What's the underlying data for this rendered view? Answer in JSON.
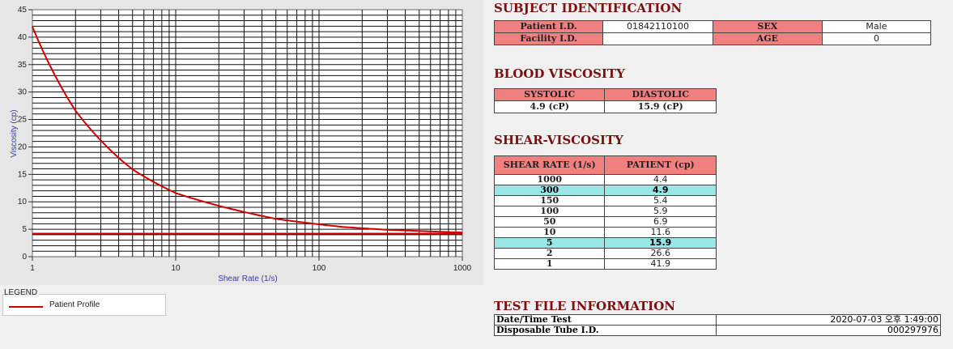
{
  "chart_data": {
    "type": "line",
    "title": "",
    "xlabel": "Shear Rate (1/s)",
    "ylabel": "Viscosity (cp)",
    "x_scale": "log",
    "xlim": [
      1,
      1000
    ],
    "ylim": [
      0,
      45
    ],
    "x_ticks": [
      "1",
      "10",
      "100",
      "1000"
    ],
    "y_ticks": [
      "0",
      "5",
      "10",
      "15",
      "20",
      "25",
      "30",
      "35",
      "40",
      "45"
    ],
    "grid": true,
    "legend_placement": "below-left",
    "series": [
      {
        "name": "Patient Profile",
        "color": "#d00000",
        "x": [
          1,
          2,
          5,
          10,
          50,
          100,
          150,
          300,
          1000
        ],
        "y": [
          41.9,
          26.6,
          15.9,
          11.6,
          6.9,
          5.9,
          5.4,
          4.9,
          4.4
        ]
      }
    ],
    "reference_line": {
      "y": 4.2,
      "color": "#d00000"
    }
  },
  "legend": {
    "title": "LEGEND",
    "items": [
      "Patient Profile"
    ]
  },
  "subject": {
    "title": "SUBJECT IDENTIFICATION",
    "patient_id_label": "Patient I.D.",
    "patient_id": "01842110100",
    "sex_label": "SEX",
    "sex": "Male",
    "facility_id_label": "Facility I.D.",
    "facility_id": "",
    "age_label": "AGE",
    "age": "0"
  },
  "blood": {
    "title": "BLOOD VISCOSITY",
    "systolic_label": "SYSTOLIC",
    "diastolic_label": "DIASTOLIC",
    "systolic": "4.9 (cP)",
    "diastolic": "15.9 (cP)"
  },
  "shear": {
    "title": "SHEAR-VISCOSITY",
    "rate_header": "SHEAR RATE (1/s)",
    "patient_header": "PATIENT (cp)",
    "rows": [
      {
        "rate": "1000",
        "value": "4.4",
        "highlight": false
      },
      {
        "rate": "300",
        "value": "4.9",
        "highlight": true
      },
      {
        "rate": "150",
        "value": "5.4",
        "highlight": false
      },
      {
        "rate": "100",
        "value": "5.9",
        "highlight": false
      },
      {
        "rate": "50",
        "value": "6.9",
        "highlight": false
      },
      {
        "rate": "10",
        "value": "11.6",
        "highlight": false
      },
      {
        "rate": "5",
        "value": "15.9",
        "highlight": true
      },
      {
        "rate": "2",
        "value": "26.6",
        "highlight": false
      },
      {
        "rate": "1",
        "value": "41.9",
        "highlight": false
      }
    ],
    "highlight_color": "#99e6e6"
  },
  "file": {
    "title": "TEST FILE INFORMATION",
    "date_label": "Date/Time Test",
    "date_value": "2020-07-03  오후 1:49:00",
    "tube_label": "Disposable Tube I.D.",
    "tube_value": "000297976"
  }
}
